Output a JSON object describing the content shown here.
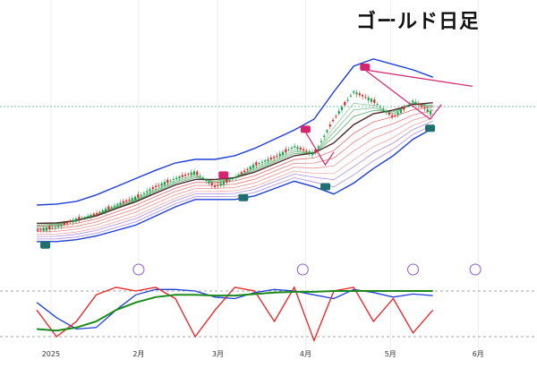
{
  "chart_data": {
    "type": "line",
    "title": "ゴールド日足",
    "x_tick_labels": [
      "2025",
      "2月",
      "3月",
      "4月",
      "5月",
      "6月"
    ],
    "dates_weekly": [
      "2024-12-27",
      "2025-01-03",
      "2025-01-10",
      "2025-01-17",
      "2025-01-24",
      "2025-01-31",
      "2025-02-07",
      "2025-02-14",
      "2025-02-21",
      "2025-02-28",
      "2025-03-07",
      "2025-03-14",
      "2025-03-21",
      "2025-03-28",
      "2025-04-04",
      "2025-04-11",
      "2025-04-18",
      "2025-04-25",
      "2025-05-02",
      "2025-05-09",
      "2025-05-16"
    ],
    "price_close": [
      2620,
      2640,
      2680,
      2710,
      2760,
      2800,
      2860,
      2905,
      2940,
      2860,
      2910,
      2980,
      3020,
      3080,
      3040,
      3230,
      3380,
      3330,
      3240,
      3330,
      3260
    ],
    "bollinger_upper": [
      2760,
      2765,
      2780,
      2815,
      2860,
      2905,
      2950,
      2990,
      3010,
      3010,
      3030,
      3070,
      3120,
      3170,
      3230,
      3380,
      3520,
      3560,
      3530,
      3500,
      3460
    ],
    "bollinger_lower": [
      2560,
      2560,
      2570,
      2590,
      2620,
      2650,
      2700,
      2750,
      2790,
      2790,
      2790,
      2810,
      2850,
      2890,
      2860,
      2820,
      2880,
      2960,
      3030,
      3120,
      3180
    ],
    "bollinger_mid": [
      2660,
      2662,
      2675,
      2700,
      2740,
      2778,
      2825,
      2870,
      2900,
      2900,
      2910,
      2940,
      2985,
      3030,
      3045,
      3100,
      3200,
      3260,
      3280,
      3310,
      3320
    ],
    "trend_line": {
      "from_date": "2025-04-22",
      "from_value": 3500,
      "to_date": "2025-05-30",
      "to_value": 3410
    },
    "peak_markers": [
      "2025-03-03",
      "2025-04-01",
      "2025-04-22"
    ],
    "trough_markers": [
      "2024-12-30",
      "2025-03-10",
      "2025-04-08",
      "2025-05-15"
    ],
    "oscillator": {
      "ylim": [
        0,
        100
      ],
      "guide_lines": [
        80,
        20
      ],
      "series": [
        {
          "color": "#1f3fd6",
          "values": [
            65,
            45,
            30,
            32,
            55,
            75,
            82,
            82,
            80,
            72,
            70,
            78,
            82,
            80,
            75,
            70,
            82,
            78,
            72,
            76,
            74
          ]
        },
        {
          "color": "#e82020",
          "values": [
            55,
            20,
            40,
            75,
            85,
            80,
            85,
            70,
            20,
            55,
            85,
            80,
            40,
            85,
            15,
            80,
            85,
            40,
            70,
            25,
            55
          ]
        },
        {
          "color": "#1a8a1a",
          "values": [
            30,
            28,
            32,
            40,
            55,
            65,
            72,
            75,
            75,
            74,
            74,
            76,
            78,
            79,
            79,
            80,
            80,
            80,
            80,
            80,
            80
          ]
        }
      ]
    }
  },
  "colors": {
    "band_outer": "#1f3fd6",
    "mid_line": "#4a2a2a",
    "ma_green": "#2e9a4a",
    "ma_red": "#e05050",
    "ma_purple": "#8a5cd0",
    "candle_up": "#16a34a",
    "candle_down": "#dc2626",
    "marker_peak": "#d6246e",
    "marker_trough": "#1f6f6f",
    "price_line": "#3aa88a"
  },
  "icons": [
    "forward-icon",
    "forward-icon",
    "forward-icon",
    "bolt-icon",
    "forward-icon"
  ]
}
